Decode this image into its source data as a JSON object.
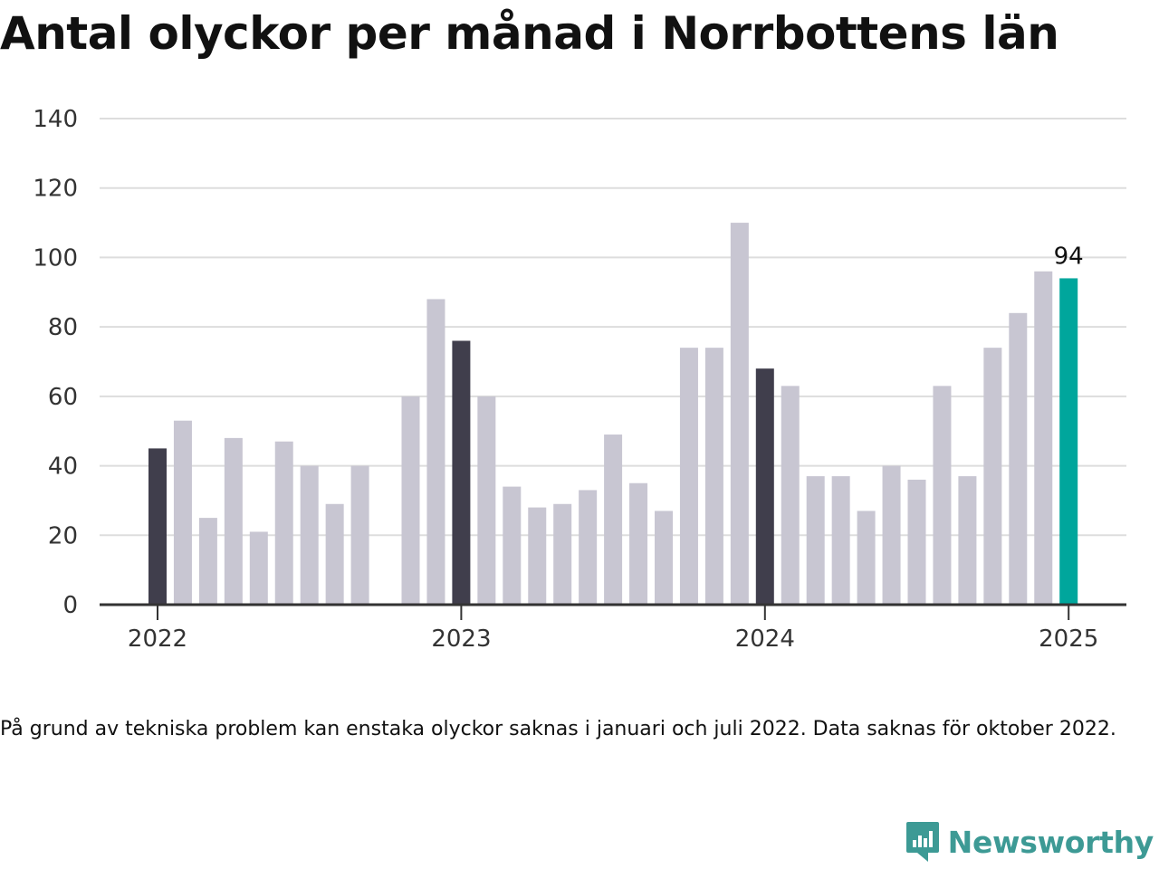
{
  "title": "Antal olyckor per månad i Norrbottens län",
  "footnote": "På grund av tekniska problem kan enstaka olyckor saknas i januari och juli 2022. Data saknas för oktober 2022.",
  "brand": "Newsworthy",
  "colors": {
    "bar": "#c8c6d2",
    "january_bar": "#403e4c",
    "latest_bar": "#00a69c",
    "grid": "#dddddd",
    "axis": "#333333",
    "brand": "#3d9a95"
  },
  "chart_data": {
    "type": "bar",
    "title": "Antal olyckor per månad i Norrbottens län",
    "xlabel": "",
    "ylabel": "",
    "ylim": [
      0,
      140
    ],
    "yticks": [
      0,
      20,
      40,
      60,
      80,
      100,
      120,
      140
    ],
    "xticks": [
      {
        "label": "2022",
        "month": "2022-01"
      },
      {
        "label": "2023",
        "month": "2023-01"
      },
      {
        "label": "2024",
        "month": "2024-01"
      },
      {
        "label": "2025",
        "month": "2025-01"
      }
    ],
    "grid": true,
    "legend": "none",
    "highlight_label": "94",
    "categories": [
      "2022-01",
      "2022-02",
      "2022-03",
      "2022-04",
      "2022-05",
      "2022-06",
      "2022-07",
      "2022-08",
      "2022-09",
      "2022-10",
      "2022-11",
      "2022-12",
      "2023-01",
      "2023-02",
      "2023-03",
      "2023-04",
      "2023-05",
      "2023-06",
      "2023-07",
      "2023-08",
      "2023-09",
      "2023-10",
      "2023-11",
      "2023-12",
      "2024-01",
      "2024-02",
      "2024-03",
      "2024-04",
      "2024-05",
      "2024-06",
      "2024-07",
      "2024-08",
      "2024-09",
      "2024-10",
      "2024-11",
      "2024-12",
      "2025-01"
    ],
    "values": [
      45,
      53,
      25,
      48,
      21,
      47,
      40,
      29,
      40,
      null,
      60,
      88,
      76,
      60,
      34,
      28,
      29,
      33,
      49,
      35,
      27,
      74,
      74,
      110,
      68,
      63,
      37,
      37,
      27,
      40,
      36,
      63,
      37,
      74,
      84,
      96,
      94
    ]
  }
}
